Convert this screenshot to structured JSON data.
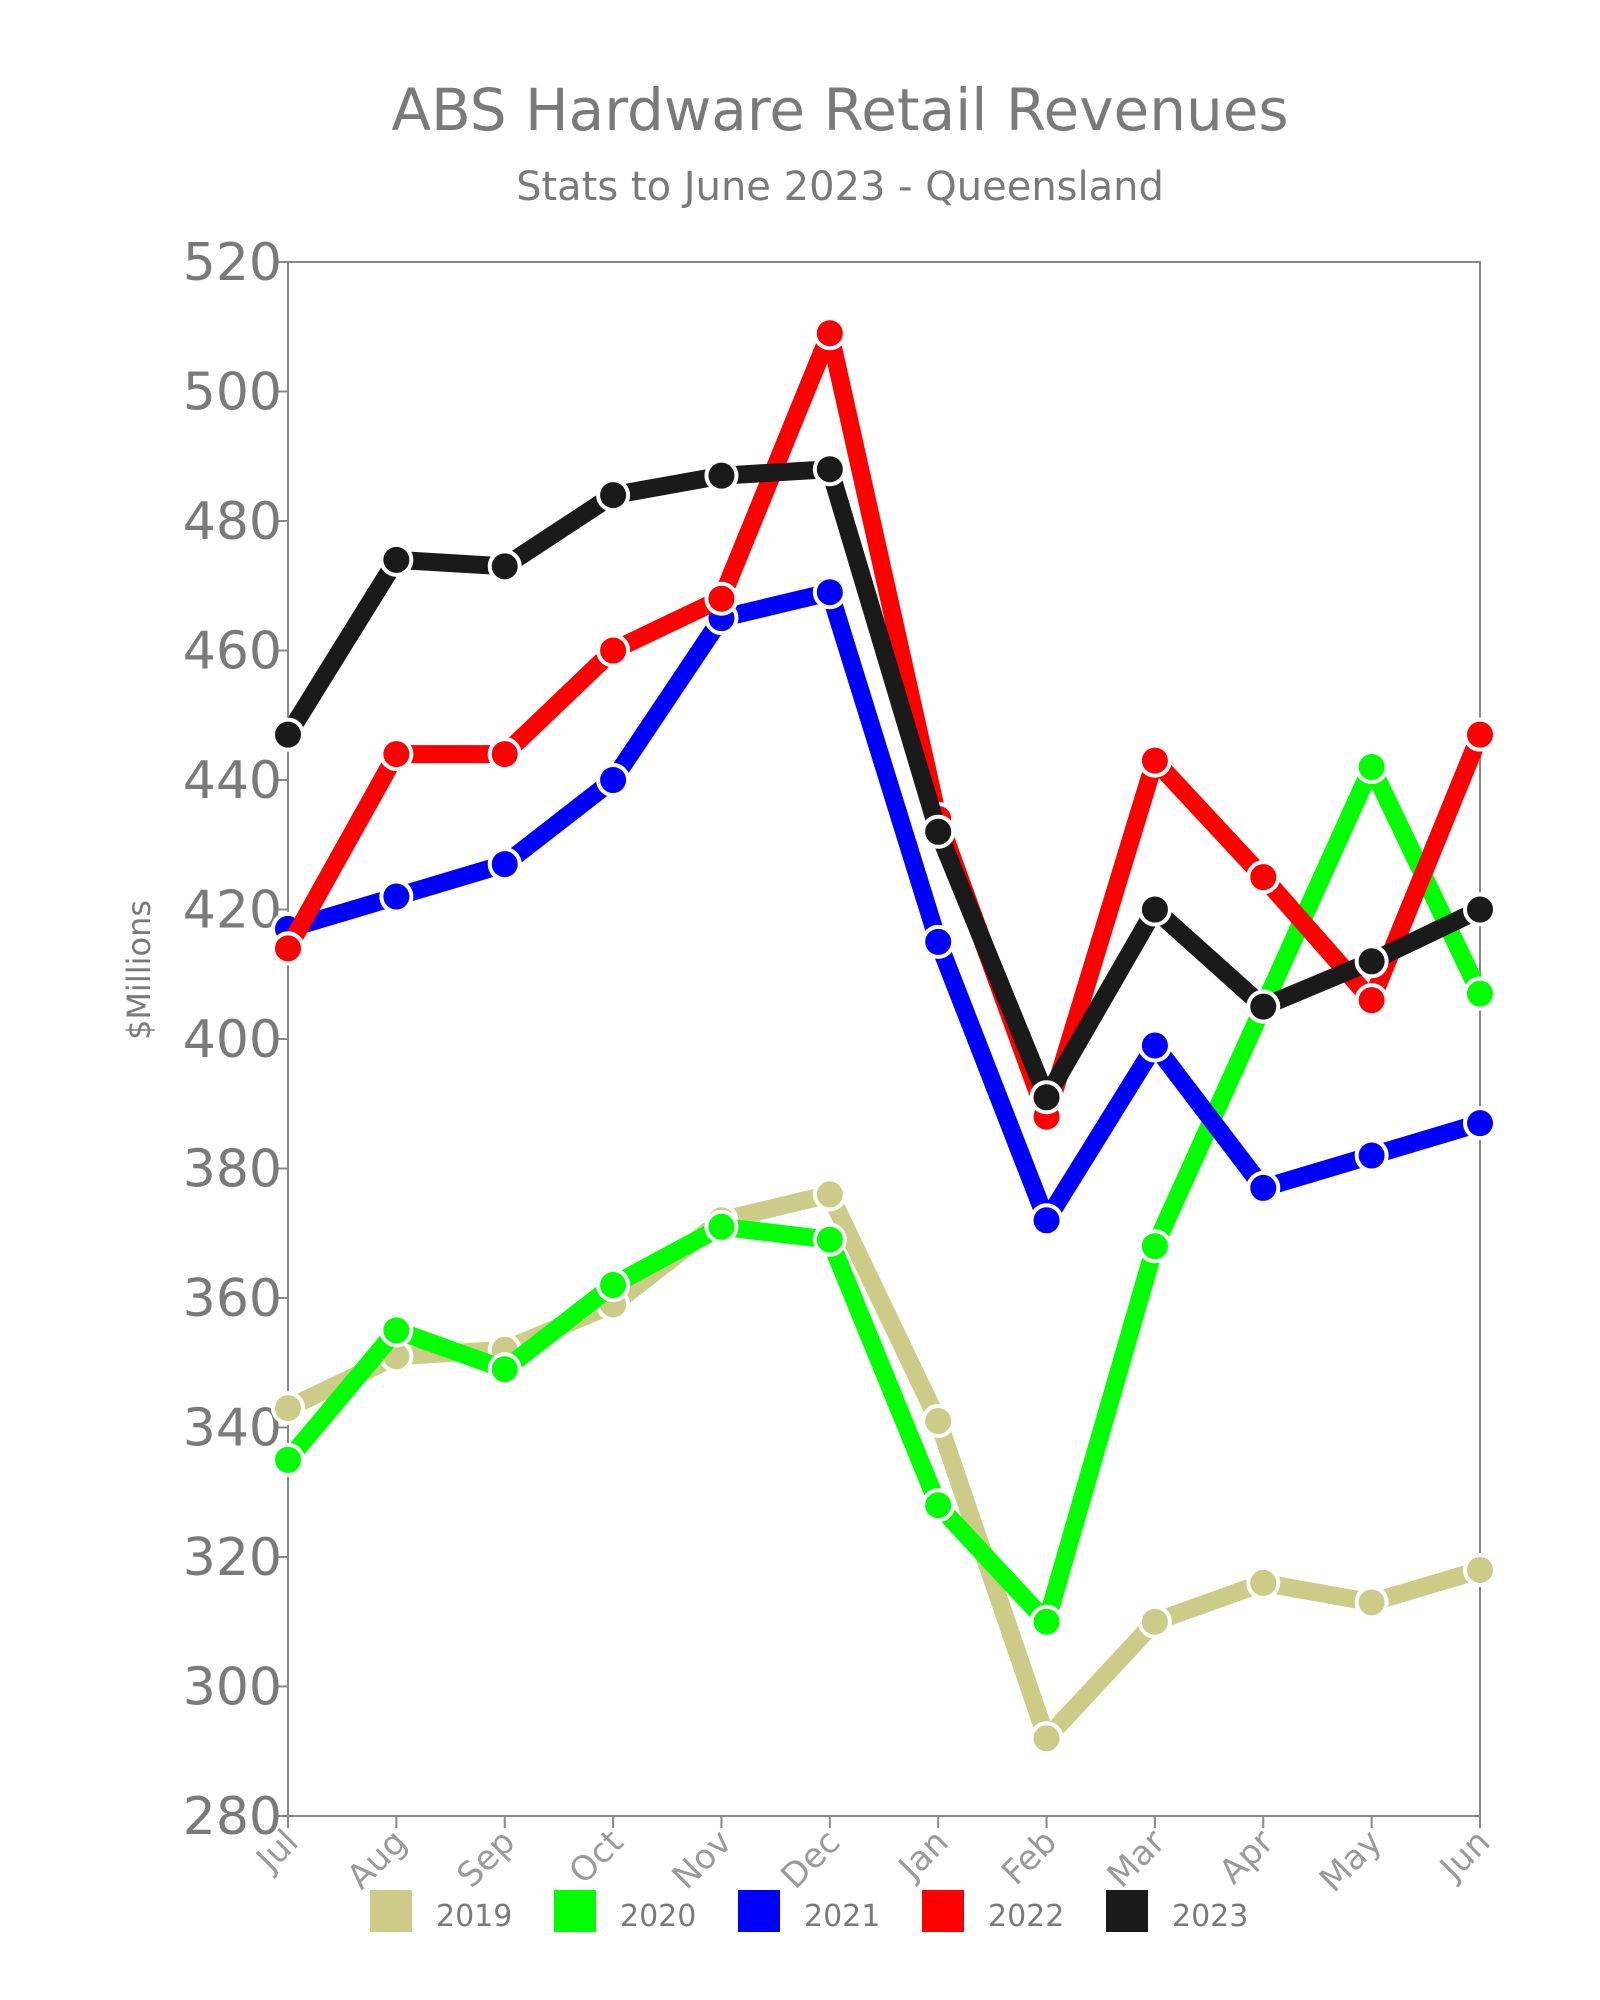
{
  "chart_data": {
    "type": "line",
    "title": "ABS Hardware Retail Revenues",
    "subtitle": "Stats to June 2023 - Queensland",
    "ylabel": "$Millions",
    "xlabel": "",
    "ylim": [
      280,
      520
    ],
    "yticks": [
      280,
      300,
      320,
      340,
      360,
      380,
      400,
      420,
      440,
      460,
      480,
      500,
      520
    ],
    "categories": [
      "Jul",
      "Aug",
      "Sep",
      "Oct",
      "Nov",
      "Dec",
      "Jan",
      "Feb",
      "Mar",
      "Apr",
      "May",
      "Jun"
    ],
    "grid": false,
    "legend_position": "bottom",
    "series": [
      {
        "name": "2019",
        "color": "#cccc88",
        "values": [
          343,
          351,
          352,
          359,
          372,
          376,
          341,
          292,
          310,
          316,
          313,
          318
        ]
      },
      {
        "name": "2020",
        "color": "#00ff00",
        "values": [
          335,
          355,
          349,
          362,
          371,
          369,
          328,
          310,
          368,
          405,
          442,
          407
        ]
      },
      {
        "name": "2021",
        "color": "#0000ff",
        "values": [
          417,
          422,
          427,
          440,
          465,
          469,
          415,
          372,
          399,
          377,
          382,
          387
        ]
      },
      {
        "name": "2022",
        "color": "#ff0000",
        "values": [
          414,
          444,
          444,
          460,
          468,
          509,
          434,
          388,
          443,
          425,
          406,
          447
        ]
      },
      {
        "name": "2023",
        "color": "#1a1a1a",
        "values": [
          447,
          474,
          473,
          484,
          487,
          488,
          432,
          391,
          420,
          405,
          412,
          420
        ]
      }
    ]
  }
}
